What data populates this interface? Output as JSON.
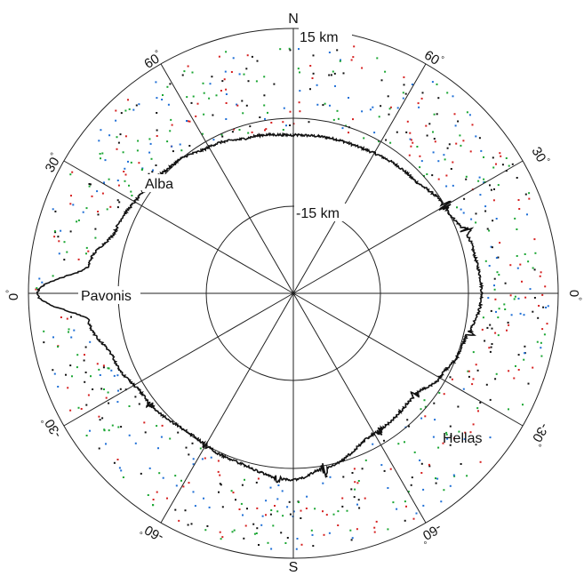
{
  "figure": {
    "north_label": "N",
    "south_label": "S",
    "degree_symbol": "°",
    "ring_labels": {
      "outer": "15 km",
      "inner": "-15 km"
    },
    "ring_values_km": {
      "outer": 15,
      "inner": -15
    },
    "latitude_labels": [
      {
        "value": "60",
        "side": "upper-left"
      },
      {
        "value": "60",
        "side": "upper-right"
      },
      {
        "value": "30",
        "side": "left-upper"
      },
      {
        "value": "30",
        "side": "right-upper"
      },
      {
        "value": "0",
        "side": "left"
      },
      {
        "value": "0",
        "side": "right"
      },
      {
        "value": "-30",
        "side": "left-lower"
      },
      {
        "value": "-30",
        "side": "right-lower"
      },
      {
        "value": "-60",
        "side": "lower-left"
      },
      {
        "value": "-60",
        "side": "lower-right"
      }
    ],
    "features": [
      "Alba",
      "Pavonis",
      "Hellas"
    ],
    "colors": {
      "profile": "#111111",
      "grid": "#222222",
      "dots": [
        "#d62020",
        "#1f6fd6",
        "#1aa632",
        "#111111"
      ]
    }
  }
}
